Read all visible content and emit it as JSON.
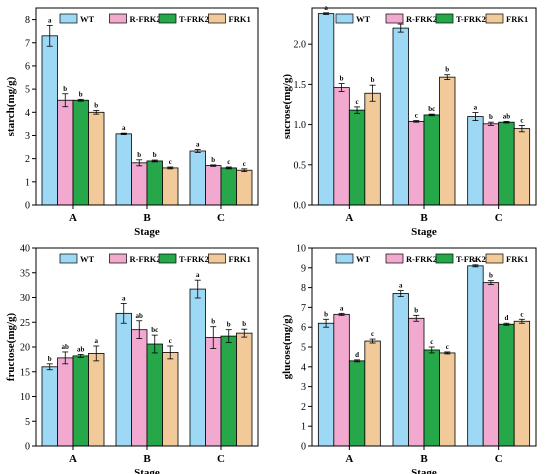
{
  "colors": {
    "WT": "#9DD8F4",
    "R-FRK2": "#F2A9CF",
    "T-FRK2": "#26A84A",
    "FRK1": "#F2C999"
  },
  "chart_data": [
    {
      "type": "bar",
      "xlabel": "Stage",
      "ylabel": "starch(mg/g)",
      "categories": [
        "A",
        "B",
        "C"
      ],
      "ylim": [
        0,
        8.5
      ],
      "yticks": [
        0,
        1,
        2,
        3,
        4,
        5,
        6,
        7,
        8
      ],
      "ytick_labels": [
        "0",
        "1",
        "2",
        "3",
        "4",
        "5",
        "6",
        "7",
        "8"
      ],
      "legend": "top",
      "series": [
        {
          "name": "WT",
          "values": [
            7.3,
            3.07,
            2.33
          ],
          "errors": [
            0.45,
            0.03,
            0.06
          ],
          "letters": [
            "a",
            "a",
            "a"
          ]
        },
        {
          "name": "R-FRK2",
          "values": [
            4.52,
            1.82,
            1.7
          ],
          "errors": [
            0.28,
            0.13,
            0.03
          ],
          "letters": [
            "b",
            "b",
            "b"
          ]
        },
        {
          "name": "T-FRK2",
          "values": [
            4.52,
            1.9,
            1.6
          ],
          "errors": [
            0.04,
            0.04,
            0.04
          ],
          "letters": [
            "b",
            "b",
            "c"
          ]
        },
        {
          "name": "FRK1",
          "values": [
            4.0,
            1.6,
            1.5
          ],
          "errors": [
            0.08,
            0.04,
            0.06
          ],
          "letters": [
            "b",
            "c",
            "c"
          ]
        }
      ]
    },
    {
      "type": "bar",
      "xlabel": "Stage",
      "ylabel": "sucrose(mg/g)",
      "categories": [
        "A",
        "B",
        "C"
      ],
      "ylim": [
        0,
        2.45
      ],
      "yticks": [
        0,
        0.5,
        1.0,
        1.5,
        2.0
      ],
      "ytick_labels": [
        "0.0",
        "0.5",
        "1.0",
        "1.5",
        "2.0"
      ],
      "legend": "top",
      "series": [
        {
          "name": "WT",
          "values": [
            2.38,
            2.2,
            1.1
          ],
          "errors": [
            0.01,
            0.05,
            0.05
          ],
          "letters": [
            "a",
            "a",
            "a"
          ]
        },
        {
          "name": "R-FRK2",
          "values": [
            1.46,
            1.04,
            1.01
          ],
          "errors": [
            0.05,
            0.01,
            0.02
          ],
          "letters": [
            "b",
            "c",
            "b"
          ]
        },
        {
          "name": "T-FRK2",
          "values": [
            1.18,
            1.12,
            1.03
          ],
          "errors": [
            0.04,
            0.01,
            0.01
          ],
          "letters": [
            "c",
            "bc",
            "ab"
          ]
        },
        {
          "name": "FRK1",
          "values": [
            1.39,
            1.59,
            0.95
          ],
          "errors": [
            0.1,
            0.03,
            0.04
          ],
          "letters": [
            "b",
            "b",
            "c"
          ]
        }
      ]
    },
    {
      "type": "bar",
      "xlabel": "Stage",
      "ylabel": "fructose(mg/g)",
      "categories": [
        "A",
        "B",
        "C"
      ],
      "ylim": [
        0,
        40
      ],
      "yticks": [
        0,
        5,
        10,
        15,
        20,
        25,
        30,
        35,
        40
      ],
      "ytick_labels": [
        "0",
        "5",
        "10",
        "15",
        "20",
        "25",
        "30",
        "35",
        "40"
      ],
      "legend": "top",
      "series": [
        {
          "name": "WT",
          "values": [
            16.0,
            26.8,
            31.7
          ],
          "errors": [
            0.6,
            2.0,
            1.8
          ],
          "letters": [
            "b",
            "a",
            "a"
          ]
        },
        {
          "name": "R-FRK2",
          "values": [
            17.8,
            23.5,
            21.9
          ],
          "errors": [
            1.2,
            1.8,
            2.2
          ],
          "letters": [
            "ab",
            "ab",
            "b"
          ]
        },
        {
          "name": "T-FRK2",
          "values": [
            18.2,
            20.6,
            22.2
          ],
          "errors": [
            0.3,
            1.8,
            1.3
          ],
          "letters": [
            "ab",
            "bc",
            "b"
          ]
        },
        {
          "name": "FRK1",
          "values": [
            18.7,
            18.9,
            22.8
          ],
          "errors": [
            1.5,
            1.3,
            0.8
          ],
          "letters": [
            "a",
            "c",
            "b"
          ]
        }
      ]
    },
    {
      "type": "bar",
      "xlabel": "Stage",
      "ylabel": "glucose(mg/g)",
      "categories": [
        "A",
        "B",
        "C"
      ],
      "ylim": [
        0,
        10
      ],
      "yticks": [
        0,
        1,
        2,
        3,
        4,
        5,
        6,
        7,
        8,
        9,
        10
      ],
      "ytick_labels": [
        "0",
        "1",
        "2",
        "3",
        "4",
        "5",
        "6",
        "7",
        "8",
        "9",
        "10"
      ],
      "legend": "top",
      "series": [
        {
          "name": "WT",
          "values": [
            6.2,
            7.7,
            9.1
          ],
          "errors": [
            0.2,
            0.15,
            0.05
          ],
          "letters": [
            "b",
            "a",
            "a"
          ]
        },
        {
          "name": "R-FRK2",
          "values": [
            6.65,
            6.45,
            8.25
          ],
          "errors": [
            0.05,
            0.15,
            0.1
          ],
          "letters": [
            "a",
            "b",
            "b"
          ]
        },
        {
          "name": "T-FRK2",
          "values": [
            4.3,
            4.85,
            6.15
          ],
          "errors": [
            0.05,
            0.15,
            0.05
          ],
          "letters": [
            "d",
            "c",
            "d"
          ]
        },
        {
          "name": "FRK1",
          "values": [
            5.3,
            4.7,
            6.3
          ],
          "errors": [
            0.1,
            0.05,
            0.1
          ],
          "letters": [
            "c",
            "c",
            "c"
          ]
        }
      ]
    }
  ]
}
